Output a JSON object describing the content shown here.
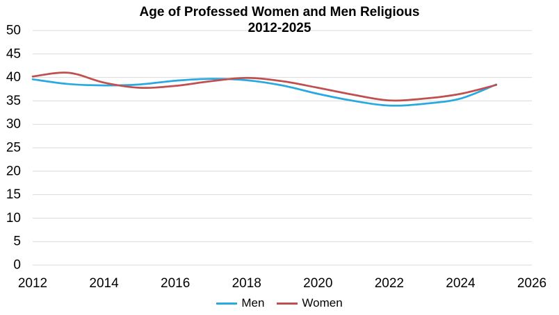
{
  "chart": {
    "title_line1": "Age of Professed Women and Men Religious",
    "title_line2": "2012-2025"
  },
  "chart_data": {
    "type": "line",
    "title": "Age of Professed Women and Men Religious 2012-2025",
    "xlabel": "",
    "ylabel": "",
    "x": [
      2012,
      2013,
      2014,
      2015,
      2016,
      2017,
      2018,
      2019,
      2020,
      2021,
      2022,
      2023,
      2024,
      2025
    ],
    "series": [
      {
        "name": "Men",
        "color": "#29A9DF",
        "values": [
          39.6,
          38.6,
          38.3,
          38.5,
          39.3,
          39.7,
          39.4,
          38.3,
          36.5,
          35.0,
          34.0,
          34.4,
          35.5,
          38.5
        ]
      },
      {
        "name": "Women",
        "color": "#C0504D",
        "values": [
          40.2,
          41.0,
          38.9,
          37.8,
          38.2,
          39.2,
          39.9,
          39.2,
          37.8,
          36.3,
          35.1,
          35.5,
          36.5,
          38.4
        ]
      }
    ],
    "xlim": [
      2012,
      2026
    ],
    "ylim": [
      0,
      50
    ],
    "xticks": [
      2012,
      2014,
      2016,
      2018,
      2020,
      2022,
      2024,
      2026
    ],
    "ytick_step": 5,
    "grid": "horizontal",
    "gridline_color": "#D9D9D9",
    "smooth": true,
    "legend_position": "bottom"
  },
  "colors": {
    "background": "#FFFFFF",
    "text": "#000000"
  }
}
